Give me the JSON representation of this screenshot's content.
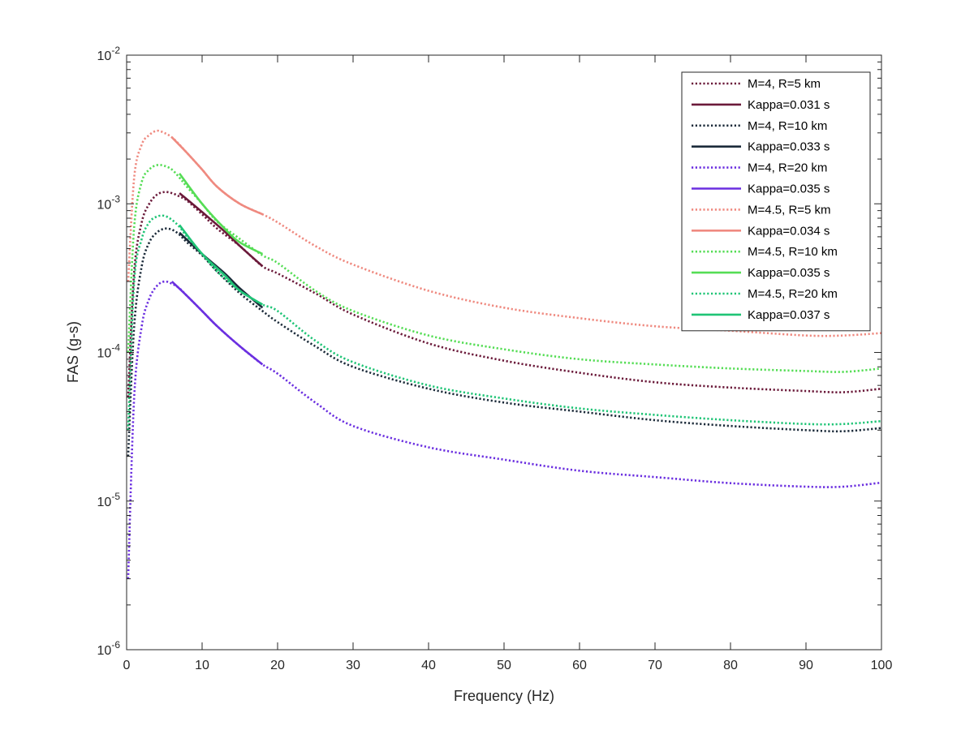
{
  "chart_data": {
    "type": "line",
    "title": "",
    "xlabel": "Frequency (Hz)",
    "ylabel": "FAS (g-s)",
    "xlim": [
      0,
      100
    ],
    "ylim": [
      1e-06,
      0.01
    ],
    "yscale": "log",
    "grid": false,
    "legend_placement": "top-right",
    "x_ticks": [
      0,
      10,
      20,
      30,
      40,
      50,
      60,
      70,
      80,
      90,
      100
    ],
    "x_tick_labels": [
      "0",
      "10",
      "20",
      "30",
      "40",
      "50",
      "60",
      "70",
      "80",
      "90",
      "100"
    ],
    "y_ticks": [
      1e-06,
      1e-05,
      0.0001,
      0.001,
      0.01
    ],
    "y_tick_labels": [
      {
        "base": "10",
        "exp": "-6"
      },
      {
        "base": "10",
        "exp": "-5"
      },
      {
        "base": "10",
        "exp": "-4"
      },
      {
        "base": "10",
        "exp": "-3"
      },
      {
        "base": "10",
        "exp": "-2"
      }
    ],
    "series": [
      {
        "name": "M=4, R=5 km",
        "color": "#6b1a3a",
        "style": "dotted",
        "x": [
          0.2,
          1,
          2,
          3,
          4,
          5,
          6,
          7,
          8,
          10,
          12,
          15,
          18,
          20,
          25,
          30,
          40,
          50,
          60,
          70,
          80,
          90,
          95,
          100
        ],
        "y": [
          5e-05,
          0.00035,
          0.00075,
          0.001,
          0.00115,
          0.0012,
          0.00118,
          0.00112,
          0.00105,
          0.00085,
          0.00068,
          0.00052,
          0.00038,
          0.00034,
          0.00025,
          0.00018,
          0.000115,
          8.8e-05,
          7.3e-05,
          6.3e-05,
          5.8e-05,
          5.5e-05,
          5.4e-05,
          5.7e-05
        ]
      },
      {
        "name": "Kappa=0.031 s",
        "color": "#6b1a3a",
        "style": "solid",
        "x": [
          7,
          10,
          13,
          15,
          18
        ],
        "y": [
          0.00118,
          0.00088,
          0.00065,
          0.00052,
          0.00038
        ]
      },
      {
        "name": "M=4, R=10 km",
        "color": "#1c2b3a",
        "style": "dotted",
        "x": [
          0.2,
          1,
          2,
          3,
          4,
          5,
          6,
          7,
          8,
          10,
          12,
          15,
          18,
          20,
          25,
          30,
          40,
          50,
          60,
          70,
          80,
          90,
          95,
          100
        ],
        "y": [
          2e-05,
          0.00015,
          0.00038,
          0.00055,
          0.00064,
          0.00068,
          0.00067,
          0.00062,
          0.00055,
          0.00045,
          0.00035,
          0.00025,
          0.00019,
          0.00016,
          0.00011,
          8e-05,
          5.7e-05,
          4.6e-05,
          4e-05,
          3.5e-05,
          3.2e-05,
          3e-05,
          2.95e-05,
          3.1e-05
        ]
      },
      {
        "name": "Kappa=0.033 s",
        "color": "#1c2b3a",
        "style": "solid",
        "x": [
          7,
          10,
          13,
          15,
          18
        ],
        "y": [
          0.00064,
          0.00046,
          0.00034,
          0.00027,
          0.0002
        ]
      },
      {
        "name": "M=4, R=20 km",
        "color": "#6b2fe0",
        "style": "dotted",
        "x": [
          0.2,
          1,
          2,
          3,
          4,
          5,
          6,
          7,
          8,
          10,
          12,
          15,
          18,
          20,
          25,
          30,
          40,
          50,
          60,
          70,
          80,
          90,
          95,
          100
        ],
        "y": [
          3e-06,
          5e-05,
          0.00015,
          0.00023,
          0.00028,
          0.0003,
          0.00029,
          0.00027,
          0.00024,
          0.00019,
          0.00015,
          0.00011,
          8.3e-05,
          7.2e-05,
          4.6e-05,
          3.2e-05,
          2.3e-05,
          1.9e-05,
          1.6e-05,
          1.45e-05,
          1.32e-05,
          1.25e-05,
          1.25e-05,
          1.33e-05
        ]
      },
      {
        "name": "Kappa=0.035 s",
        "color": "#6b2fe0",
        "style": "solid",
        "x": [
          6,
          8,
          10,
          12,
          15,
          18
        ],
        "y": [
          0.0003,
          0.00024,
          0.00019,
          0.00015,
          0.00011,
          8.3e-05
        ]
      },
      {
        "name": "M=4.5, R=5 km",
        "color": "#ef8a80",
        "style": "dotted",
        "x": [
          0.2,
          1,
          2,
          3,
          4,
          5,
          6,
          7,
          8,
          10,
          12,
          15,
          18,
          20,
          25,
          30,
          40,
          50,
          60,
          70,
          80,
          90,
          95,
          100
        ],
        "y": [
          0.0003,
          0.0015,
          0.0025,
          0.0029,
          0.0031,
          0.003,
          0.0028,
          0.0025,
          0.0022,
          0.0017,
          0.0013,
          0.001,
          0.00085,
          0.00075,
          0.00052,
          0.00039,
          0.00026,
          0.0002,
          0.00017,
          0.00015,
          0.00014,
          0.00013,
          0.00013,
          0.000135
        ]
      },
      {
        "name": "Kappa=0.034 s",
        "color": "#ef8a80",
        "style": "solid",
        "x": [
          6,
          8,
          10,
          12,
          15,
          18
        ],
        "y": [
          0.0028,
          0.0022,
          0.0017,
          0.0013,
          0.001,
          0.00085
        ]
      },
      {
        "name": "M=4.5, R=10 km",
        "color": "#55dd55",
        "style": "dotted",
        "x": [
          0.2,
          1,
          2,
          3,
          4,
          5,
          6,
          7,
          8,
          10,
          12,
          15,
          18,
          20,
          25,
          30,
          40,
          50,
          60,
          70,
          80,
          90,
          95,
          100
        ],
        "y": [
          0.0001,
          0.0007,
          0.0014,
          0.0017,
          0.00182,
          0.0018,
          0.0017,
          0.0015,
          0.0013,
          0.001,
          0.00076,
          0.00058,
          0.00045,
          0.0004,
          0.00026,
          0.00019,
          0.00013,
          0.000105,
          9e-05,
          8.3e-05,
          7.8e-05,
          7.5e-05,
          7.4e-05,
          7.8e-05
        ]
      },
      {
        "name": "Kappa=0.035 s",
        "color": "#55dd55",
        "style": "solid",
        "x": [
          7,
          10,
          13,
          15,
          18
        ],
        "y": [
          0.0016,
          0.001,
          0.00068,
          0.00055,
          0.00046
        ]
      },
      {
        "name": "M=4.5, R=20 km",
        "color": "#1fc476",
        "style": "dotted",
        "x": [
          0.2,
          1,
          2,
          3,
          4,
          5,
          6,
          7,
          8,
          10,
          12,
          15,
          18,
          20,
          25,
          30,
          40,
          50,
          60,
          70,
          80,
          90,
          95,
          100
        ],
        "y": [
          3e-05,
          0.0003,
          0.00058,
          0.00075,
          0.00082,
          0.00083,
          0.00078,
          0.0007,
          0.0006,
          0.00046,
          0.00035,
          0.00026,
          0.00021,
          0.00019,
          0.00012,
          8.6e-05,
          6e-05,
          4.9e-05,
          4.2e-05,
          3.8e-05,
          3.5e-05,
          3.3e-05,
          3.3e-05,
          3.45e-05
        ]
      },
      {
        "name": "Kappa=0.037 s",
        "color": "#1fc476",
        "style": "solid",
        "x": [
          7,
          10,
          13,
          15,
          18
        ],
        "y": [
          0.00072,
          0.00046,
          0.00033,
          0.00026,
          0.00021
        ]
      }
    ]
  }
}
